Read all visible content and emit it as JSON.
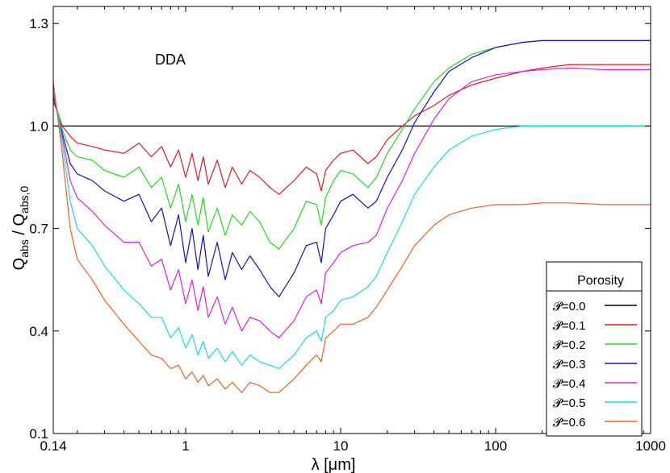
{
  "chart_data": {
    "type": "line",
    "title": "",
    "annotation": "DDA",
    "xlabel": "λ [μm]",
    "ylabel": {
      "main": "Q",
      "sub1": "abs",
      "sep": " / Q",
      "sub2": "abs,0"
    },
    "xscale": "log",
    "xlim": [
      0.14,
      1000
    ],
    "ylim": [
      0.1,
      1.35
    ],
    "xticks": [
      0.14,
      1,
      10,
      100,
      1000
    ],
    "xtick_labels": [
      "0.14",
      "1",
      "10",
      "100",
      "1000"
    ],
    "yticks": [
      0.1,
      0.4,
      0.7,
      1.0,
      1.3
    ],
    "ytick_labels": [
      "0.1",
      "0.4",
      "0.7",
      "1.0",
      "1.3"
    ],
    "grid": false,
    "legend": {
      "title": "Porosity",
      "placement": "bottom-right"
    },
    "series": [
      {
        "name": "𝓟=0.0",
        "color": "#000000",
        "x": [
          0.14,
          1000
        ],
        "y": [
          1.0,
          1.0
        ]
      },
      {
        "name": "𝓟=0.1",
        "color": "#e41a1c",
        "x": [
          0.14,
          0.15,
          0.16,
          0.18,
          0.2,
          0.25,
          0.3,
          0.4,
          0.5,
          0.6,
          0.7,
          0.8,
          0.9,
          1.0,
          1.1,
          1.2,
          1.3,
          1.4,
          1.6,
          1.8,
          2.0,
          2.3,
          2.6,
          3.0,
          3.5,
          4.0,
          5.0,
          6.0,
          7.0,
          7.5,
          8.0,
          9.0,
          10,
          12,
          15,
          17,
          20,
          25,
          30,
          40,
          50,
          70,
          100,
          150,
          200,
          300,
          500,
          700,
          1000
        ],
        "y": [
          1.07,
          1.04,
          1.0,
          0.97,
          0.95,
          0.94,
          0.93,
          0.92,
          0.95,
          0.91,
          0.94,
          0.88,
          0.93,
          0.85,
          0.92,
          0.84,
          0.91,
          0.83,
          0.9,
          0.82,
          0.88,
          0.83,
          0.87,
          0.85,
          0.82,
          0.8,
          0.84,
          0.88,
          0.86,
          0.81,
          0.87,
          0.9,
          0.92,
          0.93,
          0.89,
          0.91,
          0.96,
          1.0,
          1.03,
          1.06,
          1.09,
          1.12,
          1.14,
          1.16,
          1.17,
          1.18,
          1.18,
          1.18,
          1.18
        ]
      },
      {
        "name": "𝓟=0.2",
        "color": "#1fdd1f",
        "x": [
          0.14,
          0.15,
          0.16,
          0.18,
          0.2,
          0.25,
          0.3,
          0.4,
          0.5,
          0.6,
          0.7,
          0.8,
          0.9,
          1.0,
          1.1,
          1.2,
          1.3,
          1.4,
          1.6,
          1.8,
          2.0,
          2.3,
          2.6,
          3.0,
          3.5,
          4.0,
          5.0,
          6.0,
          7.0,
          7.5,
          8.0,
          9.0,
          10,
          12,
          15,
          17,
          20,
          25,
          30,
          40,
          50,
          70,
          100,
          150,
          200,
          300,
          500,
          700,
          1000
        ],
        "y": [
          1.08,
          1.04,
          0.99,
          0.93,
          0.91,
          0.9,
          0.87,
          0.85,
          0.88,
          0.82,
          0.85,
          0.76,
          0.83,
          0.72,
          0.8,
          0.71,
          0.79,
          0.69,
          0.76,
          0.68,
          0.74,
          0.71,
          0.75,
          0.72,
          0.66,
          0.64,
          0.7,
          0.78,
          0.77,
          0.71,
          0.79,
          0.84,
          0.87,
          0.86,
          0.82,
          0.85,
          0.92,
          0.99,
          1.05,
          1.13,
          1.17,
          1.21,
          1.23,
          1.245,
          1.25,
          1.25,
          1.25,
          1.25,
          1.25
        ]
      },
      {
        "name": "𝓟=0.3",
        "color": "#1010c8",
        "x": [
          0.14,
          0.15,
          0.16,
          0.18,
          0.2,
          0.25,
          0.3,
          0.4,
          0.5,
          0.6,
          0.7,
          0.8,
          0.9,
          1.0,
          1.1,
          1.2,
          1.3,
          1.4,
          1.6,
          1.8,
          2.0,
          2.3,
          2.6,
          3.0,
          3.5,
          4.0,
          5.0,
          6.0,
          7.0,
          7.5,
          8.0,
          9.0,
          10,
          12,
          15,
          17,
          20,
          25,
          30,
          40,
          50,
          70,
          100,
          150,
          200,
          300,
          500,
          700,
          1000
        ],
        "y": [
          1.09,
          1.03,
          0.98,
          0.89,
          0.86,
          0.84,
          0.81,
          0.78,
          0.8,
          0.72,
          0.76,
          0.65,
          0.74,
          0.6,
          0.7,
          0.58,
          0.68,
          0.56,
          0.66,
          0.55,
          0.63,
          0.58,
          0.62,
          0.58,
          0.53,
          0.5,
          0.57,
          0.65,
          0.66,
          0.6,
          0.7,
          0.74,
          0.78,
          0.8,
          0.76,
          0.78,
          0.85,
          0.93,
          1.01,
          1.1,
          1.16,
          1.2,
          1.23,
          1.245,
          1.25,
          1.25,
          1.25,
          1.25,
          1.25
        ]
      },
      {
        "name": "𝓟=0.4",
        "color": "#e020e0",
        "x": [
          0.14,
          0.15,
          0.16,
          0.18,
          0.2,
          0.25,
          0.3,
          0.4,
          0.5,
          0.6,
          0.7,
          0.8,
          0.9,
          1.0,
          1.1,
          1.2,
          1.3,
          1.4,
          1.6,
          1.8,
          2.0,
          2.3,
          2.6,
          3.0,
          3.5,
          4.0,
          5.0,
          6.0,
          7.0,
          7.5,
          8.0,
          9.0,
          10,
          12,
          15,
          17,
          20,
          25,
          30,
          40,
          50,
          70,
          100,
          150,
          200,
          300,
          500,
          700,
          1000
        ],
        "y": [
          1.1,
          1.03,
          0.97,
          0.84,
          0.79,
          0.75,
          0.71,
          0.66,
          0.66,
          0.59,
          0.61,
          0.52,
          0.58,
          0.48,
          0.55,
          0.46,
          0.53,
          0.44,
          0.5,
          0.42,
          0.47,
          0.4,
          0.44,
          0.43,
          0.4,
          0.38,
          0.43,
          0.5,
          0.52,
          0.48,
          0.57,
          0.6,
          0.63,
          0.65,
          0.66,
          0.68,
          0.76,
          0.84,
          0.92,
          1.02,
          1.08,
          1.13,
          1.15,
          1.16,
          1.165,
          1.17,
          1.165,
          1.165,
          1.165
        ]
      },
      {
        "name": "𝓟=0.5",
        "color": "#10e0e8",
        "x": [
          0.14,
          0.15,
          0.16,
          0.18,
          0.2,
          0.25,
          0.3,
          0.4,
          0.5,
          0.6,
          0.7,
          0.8,
          0.9,
          1.0,
          1.1,
          1.2,
          1.3,
          1.4,
          1.6,
          1.8,
          2.0,
          2.3,
          2.6,
          3.0,
          3.5,
          4.0,
          5.0,
          6.0,
          7.0,
          7.5,
          8.0,
          9.0,
          10,
          12,
          15,
          17,
          20,
          25,
          30,
          40,
          50,
          70,
          100,
          150,
          200,
          300,
          500,
          700,
          1000
        ],
        "y": [
          1.12,
          1.03,
          0.95,
          0.78,
          0.7,
          0.65,
          0.59,
          0.52,
          0.48,
          0.44,
          0.44,
          0.38,
          0.41,
          0.35,
          0.39,
          0.33,
          0.37,
          0.32,
          0.35,
          0.31,
          0.34,
          0.3,
          0.33,
          0.31,
          0.3,
          0.29,
          0.33,
          0.38,
          0.4,
          0.37,
          0.44,
          0.46,
          0.49,
          0.5,
          0.53,
          0.56,
          0.63,
          0.72,
          0.8,
          0.88,
          0.93,
          0.97,
          0.99,
          1.0,
          1.0,
          1.0,
          1.0,
          1.0,
          1.0
        ]
      },
      {
        "name": "𝓟=0.6",
        "color": "#f06020",
        "x": [
          0.14,
          0.15,
          0.16,
          0.18,
          0.2,
          0.25,
          0.3,
          0.4,
          0.5,
          0.6,
          0.7,
          0.8,
          0.9,
          1.0,
          1.1,
          1.2,
          1.3,
          1.4,
          1.6,
          1.8,
          2.0,
          2.3,
          2.6,
          3.0,
          3.5,
          4.0,
          5.0,
          6.0,
          7.0,
          7.5,
          8.0,
          9.0,
          10,
          12,
          15,
          17,
          20,
          25,
          30,
          40,
          50,
          70,
          100,
          150,
          200,
          300,
          500,
          700,
          1000
        ],
        "y": [
          1.13,
          1.02,
          0.92,
          0.7,
          0.61,
          0.55,
          0.49,
          0.42,
          0.37,
          0.33,
          0.32,
          0.29,
          0.3,
          0.26,
          0.28,
          0.25,
          0.27,
          0.24,
          0.26,
          0.23,
          0.25,
          0.22,
          0.25,
          0.24,
          0.22,
          0.22,
          0.26,
          0.3,
          0.33,
          0.31,
          0.38,
          0.4,
          0.42,
          0.42,
          0.44,
          0.47,
          0.52,
          0.59,
          0.65,
          0.71,
          0.74,
          0.76,
          0.77,
          0.77,
          0.775,
          0.775,
          0.77,
          0.77,
          0.77
        ]
      }
    ]
  }
}
